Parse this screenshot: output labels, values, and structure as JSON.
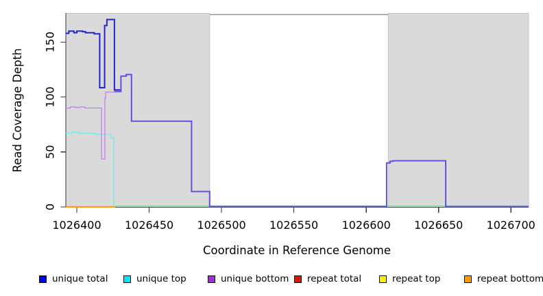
{
  "figure": {
    "background": "#ffffff"
  },
  "chart_data": {
    "type": "line",
    "title": "",
    "xlabel": "Coordinate in Reference Genome",
    "ylabel": "Read Coverage Depth",
    "xlim": [
      1026392.4,
      1026712.2
    ],
    "ylim": [
      0,
      175
    ],
    "grid": false,
    "x_ticks": [
      1026400,
      1026450,
      1026500,
      1026550,
      1026600,
      1026650,
      1026700
    ],
    "y_ticks": [
      0,
      50,
      100,
      150
    ],
    "shaded_regions": [
      {
        "name": "repeat-region-1",
        "x_start": 1026392.4,
        "x_end": 1026491.8,
        "color": "#dadada",
        "edge_color": "#c4c4c4"
      },
      {
        "name": "repeat-region-2",
        "x_start": 1026615.2,
        "x_end": 1026712.2,
        "color": "#dadada",
        "edge_color": "#c4c4c4"
      }
    ],
    "gap_top_line": {
      "x_start": 1026491.8,
      "x_end": 1026615.2,
      "y": 175,
      "color": "#909090"
    },
    "legend": [
      {
        "label": "unique total",
        "color": "#0000ee"
      },
      {
        "label": "unique top",
        "color": "#00e6f0"
      },
      {
        "label": "unique bottom",
        "color": "#9c2fd6"
      },
      {
        "label": "repeat total",
        "color": "#e11111"
      },
      {
        "label": "repeat top",
        "color": "#f2f20c"
      },
      {
        "label": "repeat bottom",
        "color": "#ff9d00"
      }
    ],
    "series": [
      {
        "name": "repeat total",
        "color": "#e11111",
        "width": 2,
        "points": [
          [
            1026392.4,
            0
          ],
          [
            1026426.5,
            0
          ]
        ]
      },
      {
        "name": "repeat top",
        "color": "#f2f20c",
        "width": 2,
        "points": [
          [
            1026392.4,
            0
          ],
          [
            1026426.5,
            0
          ]
        ]
      },
      {
        "name": "repeat bottom",
        "color": "#ff9a1e",
        "width": 2.2,
        "points": [
          [
            1026392.4,
            0
          ],
          [
            1026426.5,
            0
          ]
        ]
      },
      {
        "name": "top strand baseline (unique top + repeat top overlap)",
        "color": "#8fd89b",
        "width": 1.3,
        "points": [
          [
            1026426.5,
            1
          ],
          [
            1026712.2,
            1
          ]
        ]
      },
      {
        "name": "unique top",
        "color": "#70e6ee",
        "width": 1.3,
        "points": [
          [
            1026392.4,
            67
          ],
          [
            1026396.5,
            68
          ],
          [
            1026401.5,
            67
          ],
          [
            1026412.5,
            66
          ],
          [
            1026423.5,
            63
          ],
          [
            1026425.5,
            63
          ],
          [
            1026425.5,
            1
          ]
        ]
      },
      {
        "name": "unique bottom",
        "color": "#c47fe6",
        "width": 1.3,
        "points": [
          [
            1026392.4,
            90
          ],
          [
            1026395.5,
            91
          ],
          [
            1026399,
            90.5
          ],
          [
            1026402,
            91
          ],
          [
            1026405.5,
            90
          ],
          [
            1026417.1,
            43.5
          ],
          [
            1026419.4,
            99
          ],
          [
            1026419.9,
            104.5
          ],
          [
            1026426,
            105
          ],
          [
            1026430.5,
            105
          ]
        ]
      },
      {
        "name": "unique total",
        "color": "#2323cd",
        "width": 2,
        "points": [
          [
            1026392.4,
            158
          ],
          [
            1026394.5,
            160
          ],
          [
            1026398,
            158.5
          ],
          [
            1026400,
            160
          ],
          [
            1026404,
            159.5
          ],
          [
            1026406,
            158.5
          ],
          [
            1026412,
            157.5
          ],
          [
            1026415.8,
            108.5
          ],
          [
            1026419.2,
            165
          ],
          [
            1026420.8,
            170.5
          ],
          [
            1026426,
            106.5
          ],
          [
            1026430.5,
            106.5
          ]
        ]
      },
      {
        "name": "unique total over unique bottom (merged)",
        "color": "#6152dd",
        "width": 2,
        "points": [
          [
            1026426,
            105
          ],
          [
            1026430.5,
            119
          ],
          [
            1026434.2,
            120.5
          ],
          [
            1026437.8,
            78
          ],
          [
            1026479.3,
            14
          ],
          [
            1026491.8,
            0.3
          ],
          [
            1026614.1,
            40
          ],
          [
            1026616.5,
            41.5
          ],
          [
            1026618.5,
            42
          ],
          [
            1026654.9,
            0.3
          ],
          [
            1026712.2,
            0.3
          ]
        ]
      }
    ]
  },
  "layout_note": ""
}
